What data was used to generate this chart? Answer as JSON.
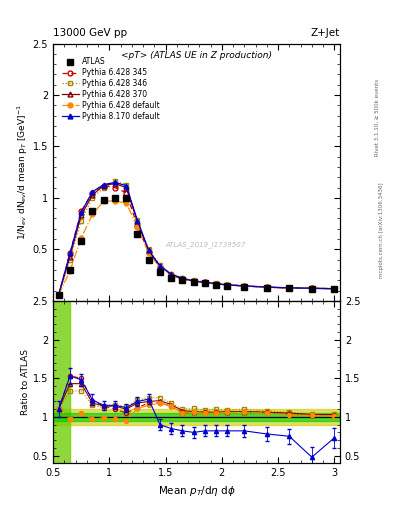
{
  "title_top": "13000 GeV pp",
  "title_right": "Z+Jet",
  "plot_title": "<pT> (ATLAS UE in Z production)",
  "xlabel": "Mean $p_T$/d$\\eta$ d$\\phi$",
  "ylabel_main": "1/N$_{ev}$ dN$_{ev}$/d mean p$_T$ [GeV]$^{-1}$",
  "ylabel_ratio": "Ratio to ATLAS",
  "right_label_top": "Rivet 3.1.10, ≥ 500k events",
  "right_label_bottom": "mcplots.cern.ch [arXiv:1306.3436]",
  "watermark": "ATLAS_2019_I1739507",
  "xlim": [
    0.5,
    3.05
  ],
  "ylim_main": [
    0.0,
    2.5
  ],
  "ylim_ratio": [
    0.4,
    2.5
  ],
  "x_atlas": [
    0.55,
    0.65,
    0.75,
    0.85,
    0.95,
    1.05,
    1.15,
    1.25,
    1.35,
    1.45,
    1.55,
    1.65,
    1.75,
    1.85,
    1.95,
    2.05,
    2.2,
    2.4,
    2.6,
    2.8,
    3.0
  ],
  "y_atlas": [
    0.055,
    0.3,
    0.58,
    0.87,
    0.98,
    1.0,
    1.0,
    0.65,
    0.4,
    0.28,
    0.22,
    0.2,
    0.18,
    0.17,
    0.155,
    0.145,
    0.135,
    0.125,
    0.12,
    0.118,
    0.115
  ],
  "x_mc": [
    0.55,
    0.65,
    0.75,
    0.85,
    0.95,
    1.05,
    1.15,
    1.25,
    1.35,
    1.45,
    1.55,
    1.65,
    1.75,
    1.85,
    1.95,
    2.05,
    2.2,
    2.4,
    2.6,
    2.8,
    3.0
  ],
  "y_p6_345": [
    0.06,
    0.46,
    0.87,
    1.05,
    1.12,
    1.1,
    1.05,
    0.73,
    0.47,
    0.33,
    0.25,
    0.21,
    0.19,
    0.18,
    0.165,
    0.155,
    0.145,
    0.132,
    0.125,
    0.122,
    0.118
  ],
  "y_p6_346": [
    0.06,
    0.4,
    0.78,
    1.0,
    1.1,
    1.16,
    1.13,
    0.79,
    0.5,
    0.35,
    0.26,
    0.22,
    0.2,
    0.185,
    0.17,
    0.158,
    0.148,
    0.135,
    0.127,
    0.123,
    0.119
  ],
  "y_p6_370": [
    0.06,
    0.43,
    0.83,
    1.03,
    1.12,
    1.14,
    1.1,
    0.77,
    0.48,
    0.34,
    0.255,
    0.215,
    0.192,
    0.18,
    0.165,
    0.155,
    0.145,
    0.133,
    0.126,
    0.122,
    0.118
  ],
  "y_p6_def": [
    0.06,
    0.29,
    0.61,
    0.84,
    0.97,
    0.97,
    0.95,
    0.72,
    0.46,
    0.33,
    0.25,
    0.21,
    0.19,
    0.178,
    0.163,
    0.153,
    0.143,
    0.131,
    0.124,
    0.12,
    0.116
  ],
  "y_p8_def": [
    0.06,
    0.46,
    0.86,
    1.06,
    1.13,
    1.15,
    1.12,
    0.78,
    0.49,
    0.34,
    0.26,
    0.22,
    0.192,
    0.18,
    0.165,
    0.155,
    0.145,
    0.133,
    0.126,
    0.122,
    0.118
  ],
  "r_p6_345": [
    1.1,
    1.53,
    1.5,
    1.21,
    1.14,
    1.1,
    1.05,
    1.12,
    1.18,
    1.18,
    1.14,
    1.05,
    1.06,
    1.06,
    1.06,
    1.07,
    1.07,
    1.06,
    1.04,
    1.03,
    1.03
  ],
  "r_p6_346": [
    1.1,
    1.33,
    1.34,
    1.15,
    1.12,
    1.16,
    1.13,
    1.22,
    1.25,
    1.25,
    1.18,
    1.1,
    1.11,
    1.09,
    1.1,
    1.09,
    1.1,
    1.08,
    1.06,
    1.04,
    1.04
  ],
  "r_p6_370": [
    1.1,
    1.43,
    1.43,
    1.18,
    1.14,
    1.14,
    1.1,
    1.18,
    1.2,
    1.21,
    1.16,
    1.08,
    1.07,
    1.06,
    1.06,
    1.07,
    1.07,
    1.06,
    1.05,
    1.03,
    1.03
  ],
  "r_p6_def": [
    1.1,
    0.97,
    1.05,
    0.97,
    0.99,
    0.97,
    0.95,
    1.11,
    1.15,
    1.18,
    1.14,
    1.05,
    1.06,
    1.05,
    1.05,
    1.06,
    1.06,
    1.05,
    1.03,
    1.02,
    1.01
  ],
  "r_p8_def": [
    1.1,
    1.53,
    1.48,
    1.22,
    1.15,
    1.15,
    1.12,
    1.2,
    1.23,
    0.9,
    0.85,
    0.82,
    0.8,
    0.82,
    0.82,
    0.82,
    0.82,
    0.78,
    0.75,
    0.48,
    0.73
  ],
  "r_p8_err": [
    0.1,
    0.1,
    0.08,
    0.07,
    0.06,
    0.05,
    0.05,
    0.06,
    0.06,
    0.07,
    0.07,
    0.07,
    0.07,
    0.07,
    0.07,
    0.07,
    0.08,
    0.09,
    0.1,
    0.13,
    0.13
  ],
  "colors": {
    "atlas": "#000000",
    "p6_345": "#cc0000",
    "p6_346": "#aa8800",
    "p6_370": "#880000",
    "p6_def": "#ff8800",
    "p8_def": "#0000cc"
  },
  "fig_width": 3.93,
  "fig_height": 5.12
}
